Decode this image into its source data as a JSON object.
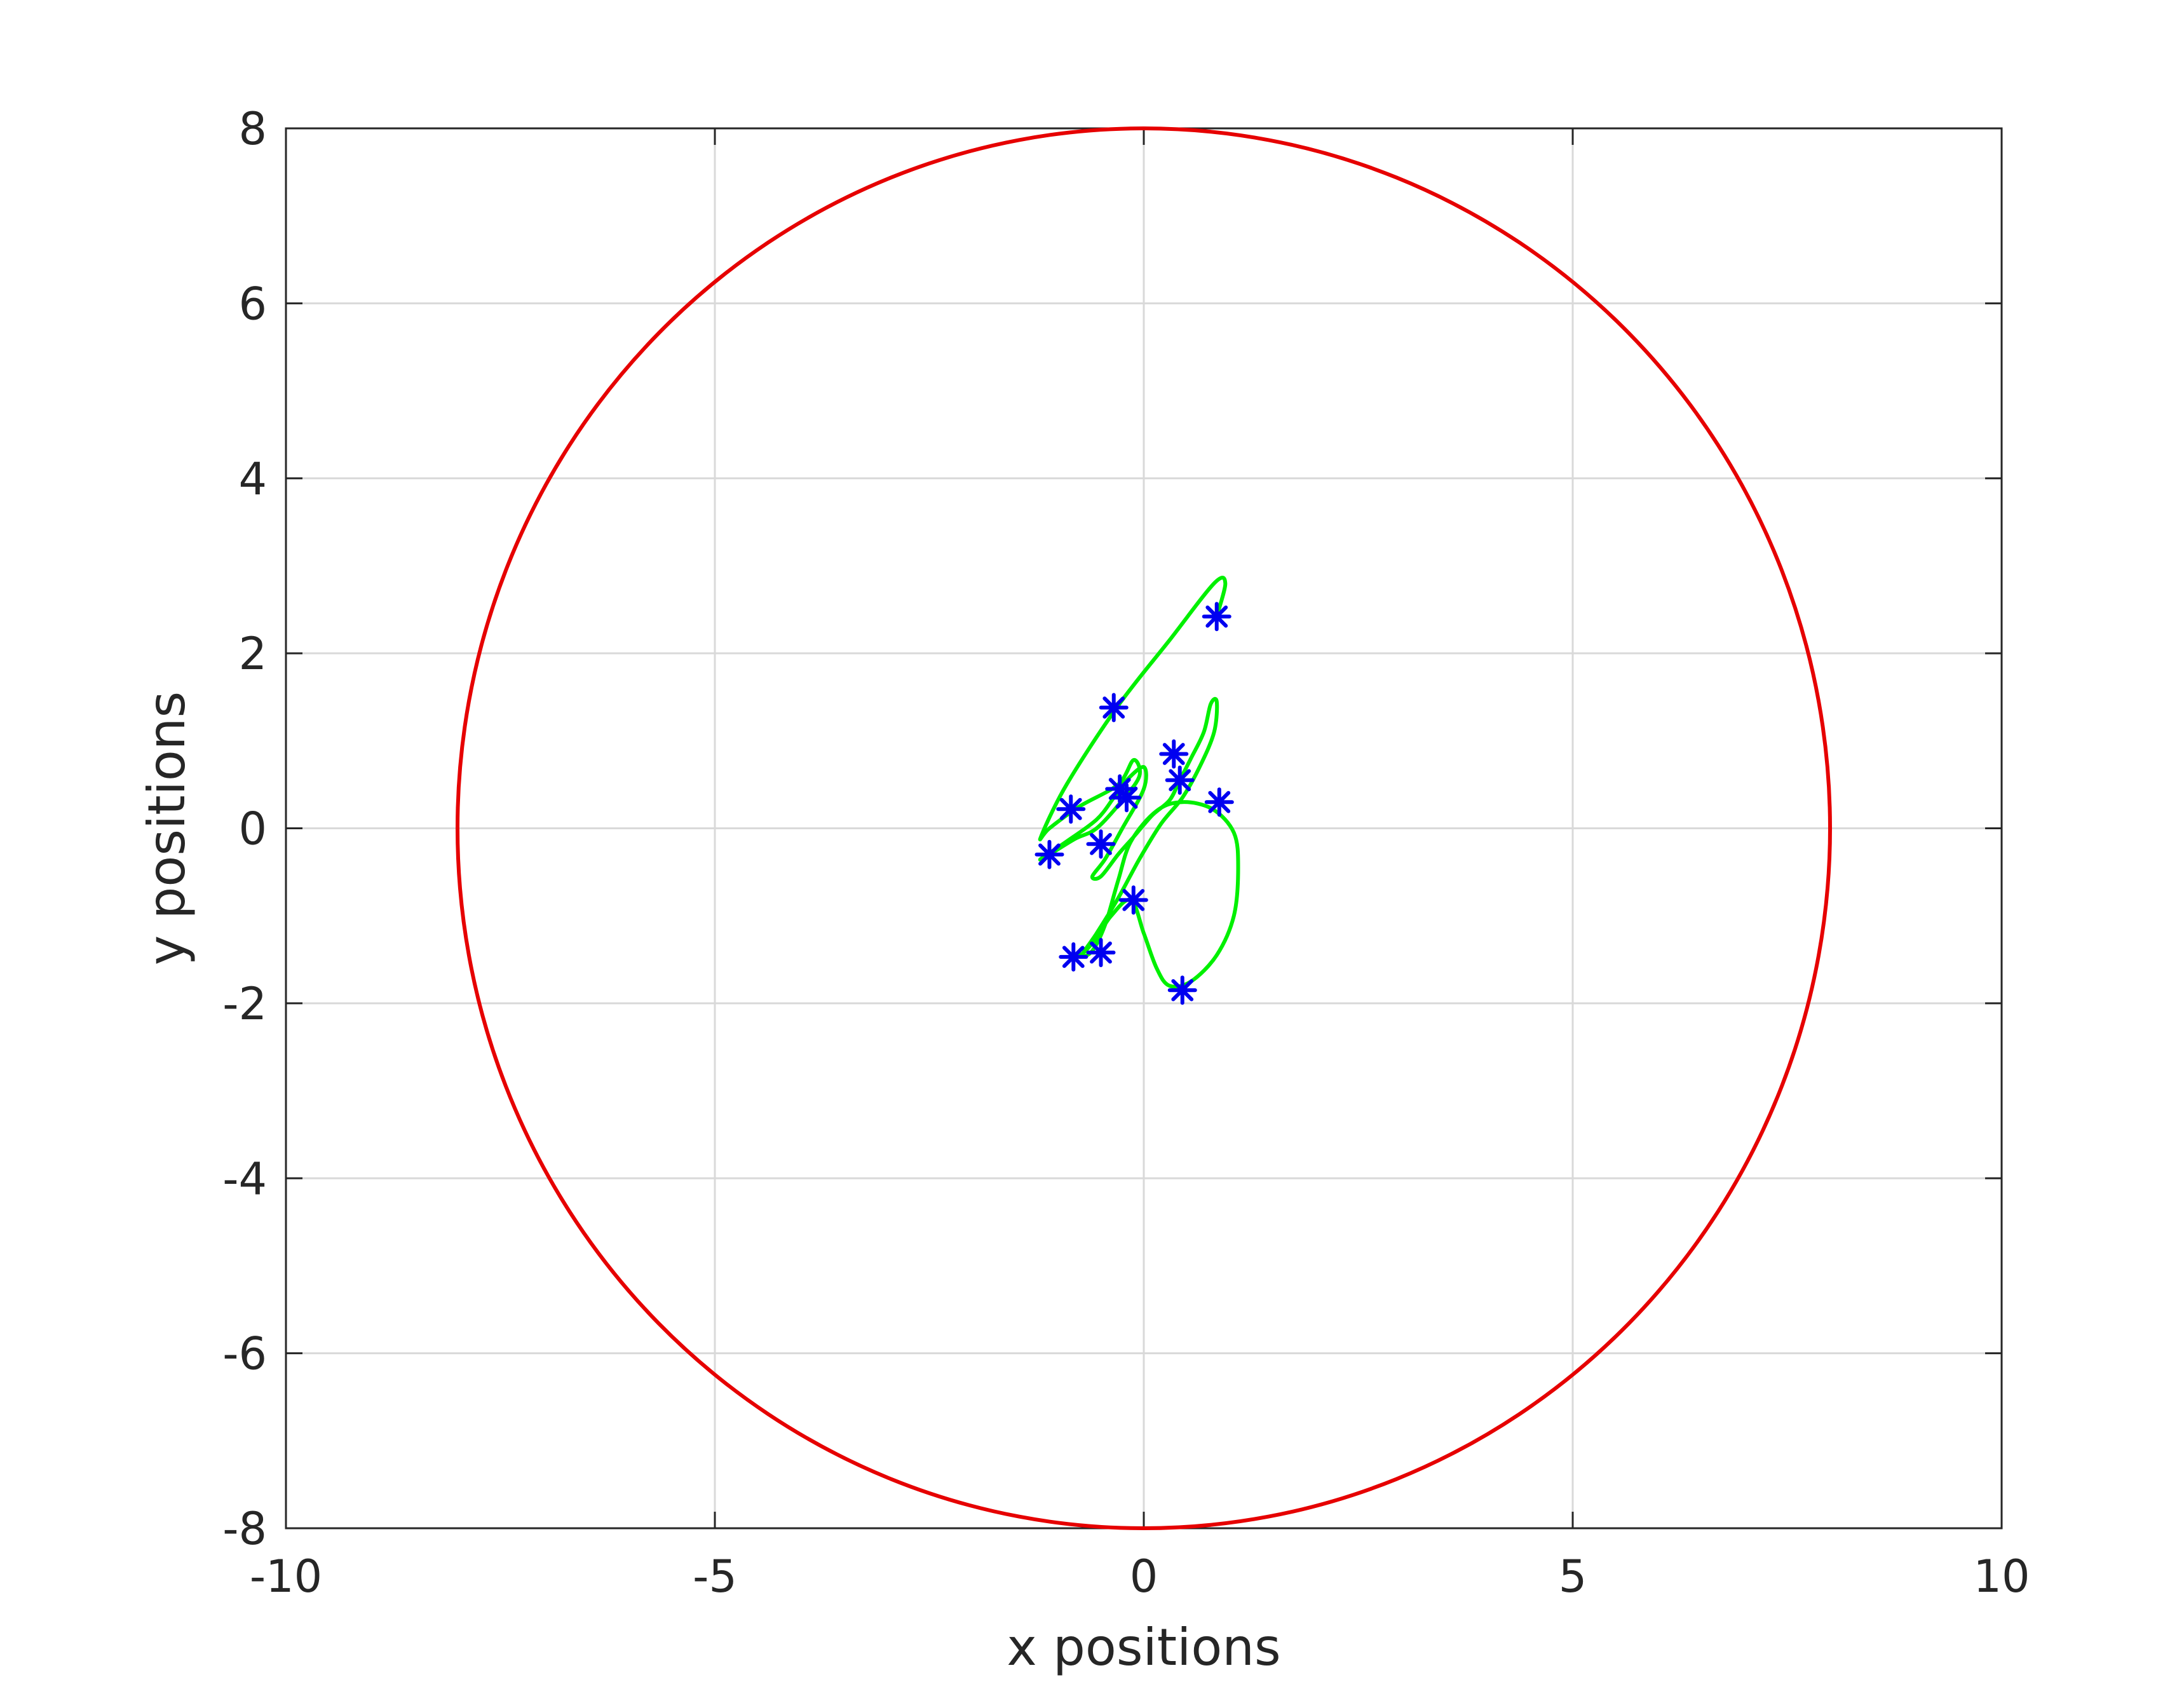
{
  "chart_data": {
    "type": "scatter",
    "title": "",
    "xlabel": "x positions",
    "ylabel": "y positions",
    "xlim": [
      -10,
      10
    ],
    "ylim": [
      -8,
      8
    ],
    "xticks": [
      -10,
      -5,
      0,
      5,
      10
    ],
    "yticks": [
      -8,
      -6,
      -4,
      -2,
      0,
      2,
      4,
      6,
      8
    ],
    "grid": true,
    "legend": "none",
    "boundary_circle": {
      "cx": 0,
      "cy": 0,
      "r": 8,
      "color": "#e60000"
    },
    "trajectory": {
      "color": "#00f000",
      "points": [
        [
          0.85,
          2.42
        ],
        [
          0.95,
          2.8
        ],
        [
          0.82,
          2.8
        ],
        [
          0.3,
          2.15
        ],
        [
          -0.3,
          1.4
        ],
        [
          -0.9,
          0.5
        ],
        [
          -1.2,
          -0.1
        ],
        [
          -1.1,
          0.0
        ],
        [
          -0.75,
          0.25
        ],
        [
          -0.3,
          0.5
        ],
        [
          -0.12,
          0.78
        ],
        [
          -0.05,
          0.6
        ],
        [
          -0.25,
          0.32
        ],
        [
          -0.55,
          0.0
        ],
        [
          -0.8,
          -0.12
        ],
        [
          -1.1,
          -0.3
        ],
        [
          -1.2,
          -0.35
        ],
        [
          -0.9,
          -0.15
        ],
        [
          -0.55,
          0.1
        ],
        [
          -0.35,
          0.35
        ],
        [
          -0.2,
          0.55
        ],
        [
          0.0,
          0.7
        ],
        [
          0.0,
          0.45
        ],
        [
          -0.25,
          0.0
        ],
        [
          -0.45,
          -0.35
        ],
        [
          -0.6,
          -0.55
        ],
        [
          -0.5,
          -0.55
        ],
        [
          -0.3,
          -0.3
        ],
        [
          -0.12,
          -0.1
        ],
        [
          0.1,
          0.15
        ],
        [
          0.3,
          0.32
        ],
        [
          0.42,
          0.55
        ],
        [
          0.55,
          0.8
        ],
        [
          0.7,
          1.1
        ],
        [
          0.78,
          1.42
        ],
        [
          0.85,
          1.45
        ],
        [
          0.82,
          1.1
        ],
        [
          0.65,
          0.7
        ],
        [
          0.45,
          0.35
        ],
        [
          0.2,
          0.05
        ],
        [
          -0.05,
          -0.35
        ],
        [
          -0.3,
          -0.8
        ],
        [
          -0.55,
          -1.2
        ],
        [
          -0.72,
          -1.45
        ],
        [
          -0.6,
          -1.4
        ],
        [
          -0.45,
          -1.1
        ],
        [
          -0.3,
          -0.6
        ],
        [
          -0.15,
          -0.15
        ],
        [
          0.15,
          0.2
        ],
        [
          0.45,
          0.3
        ],
        [
          0.8,
          0.22
        ],
        [
          1.05,
          -0.05
        ],
        [
          1.1,
          -0.45
        ],
        [
          1.05,
          -1.0
        ],
        [
          0.85,
          -1.45
        ],
        [
          0.55,
          -1.75
        ],
        [
          0.3,
          -1.8
        ],
        [
          0.15,
          -1.6
        ],
        [
          0.0,
          -1.2
        ],
        [
          -0.15,
          -0.82
        ],
        [
          -0.38,
          -1.0
        ],
        [
          -0.55,
          -1.25
        ],
        [
          -0.7,
          -1.42
        ],
        [
          -0.8,
          -1.47
        ]
      ]
    },
    "markers": {
      "color": "#0000f0",
      "symbol": "asterisk",
      "points": [
        [
          0.85,
          2.42
        ],
        [
          -0.35,
          1.38
        ],
        [
          0.35,
          0.85
        ],
        [
          -0.28,
          0.45
        ],
        [
          -0.2,
          0.35
        ],
        [
          0.42,
          0.55
        ],
        [
          0.88,
          0.3
        ],
        [
          -0.85,
          0.22
        ],
        [
          -1.1,
          -0.3
        ],
        [
          -0.5,
          -0.18
        ],
        [
          -0.12,
          -0.82
        ],
        [
          -0.5,
          -1.42
        ],
        [
          -0.82,
          -1.47
        ],
        [
          0.45,
          -1.85
        ]
      ]
    }
  }
}
